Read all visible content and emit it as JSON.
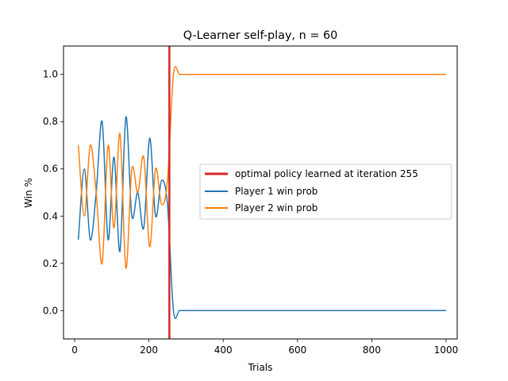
{
  "chart_data": {
    "type": "line",
    "title": "Q-Learner self-play, n = 60",
    "xlabel": "Trials",
    "ylabel": "Win %",
    "xlim": [
      -30,
      1030
    ],
    "ylim": [
      -0.12,
      1.12
    ],
    "xticks": [
      0,
      200,
      400,
      600,
      800,
      1000
    ],
    "yticks": [
      0.0,
      0.2,
      0.4,
      0.6,
      0.8,
      1.0
    ],
    "xtick_labels": [
      "0",
      "200",
      "400",
      "600",
      "800",
      "1000"
    ],
    "ytick_labels": [
      "0.0",
      "0.2",
      "0.4",
      "0.6",
      "0.8",
      "1.0"
    ],
    "grid": false,
    "legend_position": "center-right",
    "vertical_line": {
      "x": 255,
      "label": "optimal policy learned at iteration 255",
      "color": "#d62728"
    },
    "series": [
      {
        "name": "Player 1 win prob",
        "color": "#1f77b4",
        "x": [
          10,
          26,
          42,
          58,
          74,
          90,
          106,
          122,
          138,
          154,
          170,
          186,
          202,
          218,
          234,
          250,
          266,
          282,
          298,
          314,
          330,
          346,
          362,
          378,
          394,
          410,
          426,
          442,
          458,
          474,
          490,
          506,
          522,
          538,
          554,
          570,
          586,
          602,
          618,
          634,
          650,
          666,
          682,
          698,
          714,
          730,
          746,
          762,
          778,
          794,
          810,
          826,
          842,
          858,
          874,
          890,
          906,
          922,
          938,
          954,
          970,
          986,
          1000
        ],
        "y": [
          0.3,
          0.6,
          0.3,
          0.5,
          0.8,
          0.3,
          0.65,
          0.25,
          0.82,
          0.4,
          0.5,
          0.35,
          0.73,
          0.4,
          0.55,
          0.45,
          0.0,
          0.0,
          0.0,
          0.0,
          0.0,
          0.0,
          0.0,
          0.0,
          0.0,
          0.0,
          0.0,
          0.0,
          0.0,
          0.0,
          0.0,
          0.0,
          0.0,
          0.0,
          0.0,
          0.0,
          0.0,
          0.0,
          0.0,
          0.0,
          0.0,
          0.0,
          0.0,
          0.0,
          0.0,
          0.0,
          0.0,
          0.0,
          0.0,
          0.0,
          0.0,
          0.0,
          0.0,
          0.0,
          0.0,
          0.0,
          0.0,
          0.0,
          0.0,
          0.0,
          0.0,
          0.0,
          0.0
        ]
      },
      {
        "name": "Player 2 win prob",
        "color": "#ff7f0e",
        "x": [
          10,
          26,
          42,
          58,
          74,
          90,
          106,
          122,
          138,
          154,
          170,
          186,
          202,
          218,
          234,
          250,
          266,
          282,
          298,
          314,
          330,
          346,
          362,
          378,
          394,
          410,
          426,
          442,
          458,
          474,
          490,
          506,
          522,
          538,
          554,
          570,
          586,
          602,
          618,
          634,
          650,
          666,
          682,
          698,
          714,
          730,
          746,
          762,
          778,
          794,
          810,
          826,
          842,
          858,
          874,
          890,
          906,
          922,
          938,
          954,
          970,
          986,
          1000
        ],
        "y": [
          0.7,
          0.4,
          0.7,
          0.5,
          0.2,
          0.7,
          0.35,
          0.75,
          0.18,
          0.6,
          0.5,
          0.65,
          0.27,
          0.6,
          0.45,
          0.55,
          1.0,
          1.0,
          1.0,
          1.0,
          1.0,
          1.0,
          1.0,
          1.0,
          1.0,
          1.0,
          1.0,
          1.0,
          1.0,
          1.0,
          1.0,
          1.0,
          1.0,
          1.0,
          1.0,
          1.0,
          1.0,
          1.0,
          1.0,
          1.0,
          1.0,
          1.0,
          1.0,
          1.0,
          1.0,
          1.0,
          1.0,
          1.0,
          1.0,
          1.0,
          1.0,
          1.0,
          1.0,
          1.0,
          1.0,
          1.0,
          1.0,
          1.0,
          1.0,
          1.0,
          1.0,
          1.0,
          1.0
        ]
      }
    ]
  }
}
